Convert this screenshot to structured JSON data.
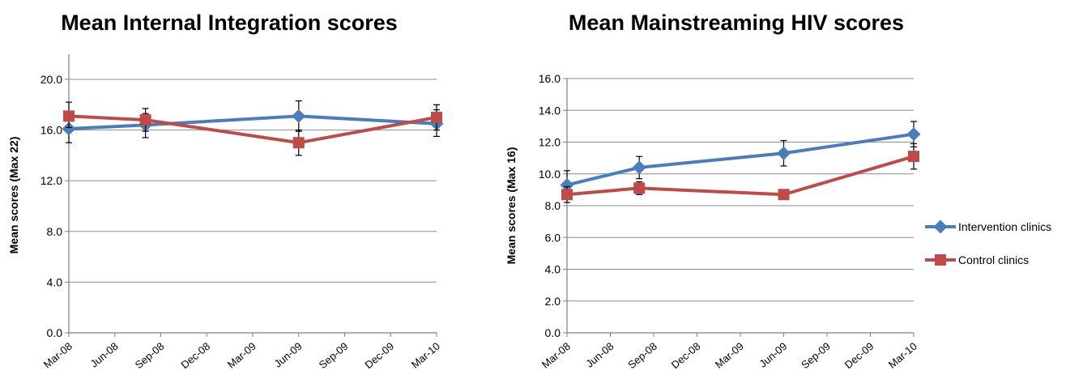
{
  "legend": {
    "position": "right",
    "entries": [
      {
        "label": "Intervention clinics",
        "color": "#4a7ebb",
        "marker": "diamond"
      },
      {
        "label": "Control clinics",
        "color": "#be4b48",
        "marker": "square"
      }
    ]
  },
  "chart_data": [
    {
      "type": "line",
      "title": "Mean Internal Integration scores",
      "xlabel": "",
      "ylabel": "Mean scores (Max 22)",
      "x_tick_labels": [
        "Mar-08",
        "Jun-08",
        "Sep-08",
        "Dec-08",
        "Mar-09",
        "Jun-09",
        "Sep-09",
        "Dec-09",
        "Mar-10"
      ],
      "y_tick_labels": [
        "0.0",
        "4.0",
        "8.0",
        "12.0",
        "16.0",
        "20.0"
      ],
      "ylim": [
        0,
        20
      ],
      "xlim": [
        "Mar-08",
        "Mar-10"
      ],
      "grid": "horizontal",
      "series": [
        {
          "name": "Intervention clinics",
          "color": "#4a7ebb",
          "marker": "diamond",
          "points": [
            {
              "x": "2008-03",
              "y": 16.1,
              "err_low": 15.0,
              "err_high": 16.8
            },
            {
              "x": "2008-08",
              "y": 16.4,
              "err_low": 15.4,
              "err_high": 17.3
            },
            {
              "x": "2009-06",
              "y": 17.1,
              "err_low": 15.9,
              "err_high": 18.3
            },
            {
              "x": "2010-03",
              "y": 16.5,
              "err_low": 15.5,
              "err_high": 17.6
            }
          ]
        },
        {
          "name": "Control clinics",
          "color": "#be4b48",
          "marker": "square",
          "points": [
            {
              "x": "2008-03",
              "y": 17.1,
              "err_low": 16.2,
              "err_high": 18.2
            },
            {
              "x": "2008-08",
              "y": 16.8,
              "err_low": 15.9,
              "err_high": 17.7
            },
            {
              "x": "2009-06",
              "y": 15.0,
              "err_low": 14.0,
              "err_high": 16.0
            },
            {
              "x": "2010-03",
              "y": 17.0,
              "err_low": 16.0,
              "err_high": 18.0
            }
          ]
        }
      ]
    },
    {
      "type": "line",
      "title": "Mean Mainstreaming HIV scores",
      "xlabel": "",
      "ylabel": "Mean scores (Max 16)",
      "x_tick_labels": [
        "Mar-08",
        "Jun-08",
        "Sep-08",
        "Dec-08",
        "Mar-09",
        "Jun-09",
        "Sep-09",
        "Dec-09",
        "Mar-10"
      ],
      "y_tick_labels": [
        "0.0",
        "2.0",
        "4.0",
        "6.0",
        "8.0",
        "10.0",
        "12.0",
        "14.0",
        "16.0"
      ],
      "ylim": [
        0,
        16
      ],
      "xlim": [
        "Mar-08",
        "Mar-10"
      ],
      "grid": "horizontal",
      "series": [
        {
          "name": "Intervention clinics",
          "color": "#4a7ebb",
          "marker": "diamond",
          "points": [
            {
              "x": "2008-03",
              "y": 9.3,
              "err_low": 8.4,
              "err_high": 10.2
            },
            {
              "x": "2008-08",
              "y": 10.4,
              "err_low": 9.7,
              "err_high": 11.1
            },
            {
              "x": "2009-06",
              "y": 11.3,
              "err_low": 10.5,
              "err_high": 12.1
            },
            {
              "x": "2010-03",
              "y": 12.5,
              "err_low": 11.7,
              "err_high": 13.3
            }
          ]
        },
        {
          "name": "Control clinics",
          "color": "#be4b48",
          "marker": "square",
          "points": [
            {
              "x": "2008-03",
              "y": 8.7,
              "err_low": 8.2,
              "err_high": 9.2
            },
            {
              "x": "2008-08",
              "y": 9.1,
              "err_low": 8.7,
              "err_high": 9.5
            },
            {
              "x": "2009-06",
              "y": 8.7,
              "err_low": 8.4,
              "err_high": 9.0
            },
            {
              "x": "2010-03",
              "y": 11.1,
              "err_low": 10.3,
              "err_high": 11.9
            }
          ]
        }
      ]
    }
  ]
}
